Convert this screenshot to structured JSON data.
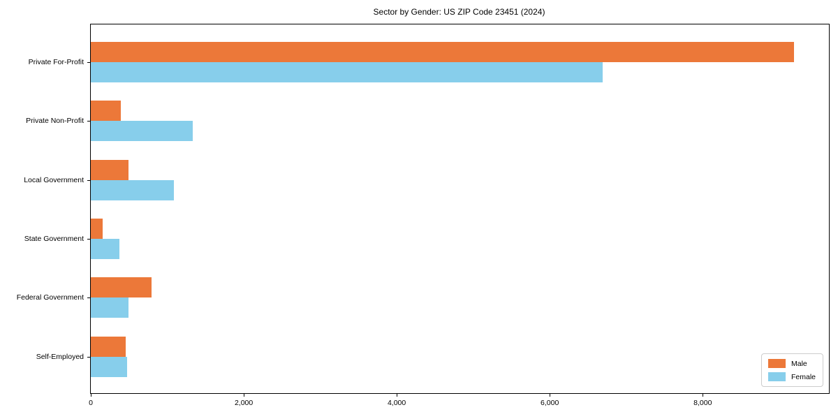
{
  "chart_data": {
    "type": "bar",
    "orientation": "horizontal",
    "title": "Sector by Gender: US ZIP Code 23451 (2024)",
    "categories": [
      "Private For-Profit",
      "Private Non-Profit",
      "Local Government",
      "State Government",
      "Federal Government",
      "Self-Employed"
    ],
    "series": [
      {
        "name": "Male",
        "color": "#ec7839",
        "values": [
          9190,
          390,
          490,
          155,
          795,
          455
        ]
      },
      {
        "name": "Female",
        "color": "#87ceeb",
        "values": [
          6690,
          1330,
          1090,
          375,
          495,
          475
        ]
      }
    ],
    "xlabel": "",
    "ylabel": "",
    "xlim": [
      0,
      9650
    ],
    "x_ticks": [
      0,
      2000,
      4000,
      6000,
      8000
    ],
    "x_tick_labels": [
      "0",
      "2,000",
      "4,000",
      "6,000",
      "8,000"
    ],
    "grid": false,
    "legend_position": "lower right",
    "plot_background": "#ffffff",
    "spine_color": "#000000"
  }
}
